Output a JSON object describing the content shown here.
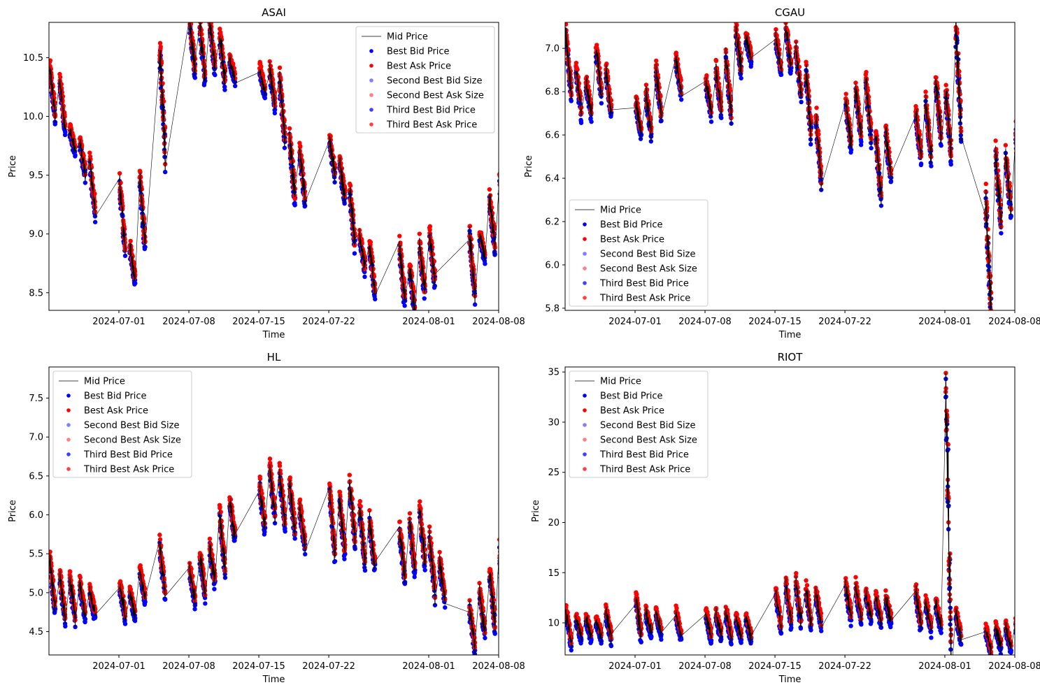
{
  "colors": {
    "bid": "#0000ff",
    "ask": "#ff0000",
    "mid": "#000000",
    "second_bid": "#8080ff",
    "second_ask": "#ff8080",
    "third_bid": "#4040ff",
    "third_ask": "#ff4040"
  },
  "chart_data": [
    {
      "type": "scatter",
      "title": "ASAI",
      "xlabel": "Time",
      "ylabel": "Price",
      "x_ticks": [
        "2024-07-01",
        "2024-07-08",
        "2024-07-15",
        "2024-07-22",
        "2024-08-01",
        "2024-08-08"
      ],
      "y_ticks": [
        "8.5",
        "9.0",
        "9.5",
        "10.0",
        "10.5"
      ],
      "xlim": [
        "2024-06-24",
        "2024-08-08"
      ],
      "ylim": [
        8.35,
        10.8
      ],
      "legend_position": "top-right",
      "legend": [
        "Mid Price",
        "Best Bid Price",
        "Best Ask Price",
        "Second Best Bid Size",
        "Second Best Ask Size",
        "Third Best Bid Price",
        "Third Best Ask Price"
      ],
      "sessions": [
        {
          "date": "2024-06-24",
          "mid": [
            10.4,
            10.0
          ]
        },
        {
          "date": "2024-06-25",
          "mid": [
            10.3,
            9.9
          ]
        },
        {
          "date": "2024-06-26",
          "mid": [
            9.9,
            9.7
          ]
        },
        {
          "date": "2024-06-27",
          "mid": [
            9.8,
            9.5
          ]
        },
        {
          "date": "2024-06-28",
          "mid": [
            9.6,
            9.2
          ]
        },
        {
          "date": "2024-07-01",
          "mid": [
            9.4,
            8.9
          ]
        },
        {
          "date": "2024-07-02",
          "mid": [
            8.9,
            8.6
          ]
        },
        {
          "date": "2024-07-03",
          "mid": [
            9.5,
            8.9
          ]
        },
        {
          "date": "2024-07-05",
          "mid": [
            10.6,
            9.7
          ]
        },
        {
          "date": "2024-07-08",
          "mid": [
            10.8,
            10.4
          ]
        },
        {
          "date": "2024-07-09",
          "mid": [
            10.8,
            10.3
          ]
        },
        {
          "date": "2024-07-10",
          "mid": [
            10.8,
            10.4
          ]
        },
        {
          "date": "2024-07-11",
          "mid": [
            10.7,
            10.3
          ]
        },
        {
          "date": "2024-07-12",
          "mid": [
            10.5,
            10.3
          ]
        },
        {
          "date": "2024-07-15",
          "mid": [
            10.4,
            10.2
          ]
        },
        {
          "date": "2024-07-16",
          "mid": [
            10.4,
            10.1
          ]
        },
        {
          "date": "2024-07-17",
          "mid": [
            10.3,
            9.8
          ]
        },
        {
          "date": "2024-07-18",
          "mid": [
            9.8,
            9.3
          ]
        },
        {
          "date": "2024-07-19",
          "mid": [
            9.7,
            9.3
          ]
        },
        {
          "date": "2024-07-22",
          "mid": [
            9.8,
            9.5
          ]
        },
        {
          "date": "2024-07-23",
          "mid": [
            9.6,
            9.3
          ]
        },
        {
          "date": "2024-07-24",
          "mid": [
            9.4,
            8.9
          ]
        },
        {
          "date": "2024-07-25",
          "mid": [
            9.0,
            8.7
          ]
        },
        {
          "date": "2024-07-26",
          "mid": [
            8.9,
            8.5
          ]
        },
        {
          "date": "2024-07-29",
          "mid": [
            8.9,
            8.4
          ]
        },
        {
          "date": "2024-07-30",
          "mid": [
            8.7,
            8.35
          ]
        },
        {
          "date": "2024-07-31",
          "mid": [
            8.9,
            8.5
          ]
        },
        {
          "date": "2024-08-01",
          "mid": [
            9.0,
            8.6
          ]
        },
        {
          "date": "2024-08-05",
          "mid": [
            9.0,
            8.5
          ]
        },
        {
          "date": "2024-08-06",
          "mid": [
            9.0,
            8.8
          ]
        },
        {
          "date": "2024-08-07",
          "mid": [
            9.3,
            8.9
          ]
        },
        {
          "date": "2024-08-08",
          "mid": [
            9.5,
            9.0
          ]
        }
      ]
    },
    {
      "type": "scatter",
      "title": "CGAU",
      "xlabel": "Time",
      "ylabel": "Price",
      "x_ticks": [
        "2024-07-01",
        "2024-07-08",
        "2024-07-15",
        "2024-07-22",
        "2024-08-01",
        "2024-08-08"
      ],
      "y_ticks": [
        "5.8",
        "6.0",
        "6.2",
        "6.4",
        "6.6",
        "6.8",
        "7.0"
      ],
      "xlim": [
        "2024-06-24",
        "2024-08-08"
      ],
      "ylim": [
        5.79,
        7.12
      ],
      "legend_position": "lower-left",
      "legend": [
        "Mid Price",
        "Best Bid Price",
        "Best Ask Price",
        "Second Best Bid Size",
        "Second Best Ask Size",
        "Third Best Bid Price",
        "Third Best Ask Price"
      ],
      "sessions": [
        {
          "date": "2024-06-24",
          "mid": [
            7.05,
            6.8
          ]
        },
        {
          "date": "2024-06-25",
          "mid": [
            6.9,
            6.7
          ]
        },
        {
          "date": "2024-06-26",
          "mid": [
            6.85,
            6.7
          ]
        },
        {
          "date": "2024-06-27",
          "mid": [
            7.0,
            6.8
          ]
        },
        {
          "date": "2024-06-28",
          "mid": [
            6.9,
            6.7
          ]
        },
        {
          "date": "2024-07-01",
          "mid": [
            6.75,
            6.6
          ]
        },
        {
          "date": "2024-07-02",
          "mid": [
            6.8,
            6.6
          ]
        },
        {
          "date": "2024-07-03",
          "mid": [
            6.9,
            6.7
          ]
        },
        {
          "date": "2024-07-05",
          "mid": [
            6.95,
            6.8
          ]
        },
        {
          "date": "2024-07-08",
          "mid": [
            6.85,
            6.7
          ]
        },
        {
          "date": "2024-07-09",
          "mid": [
            6.9,
            6.7
          ]
        },
        {
          "date": "2024-07-10",
          "mid": [
            6.95,
            6.7
          ]
        },
        {
          "date": "2024-07-11",
          "mid": [
            7.1,
            6.9
          ]
        },
        {
          "date": "2024-07-12",
          "mid": [
            7.05,
            6.95
          ]
        },
        {
          "date": "2024-07-15",
          "mid": [
            7.05,
            6.9
          ]
        },
        {
          "date": "2024-07-16",
          "mid": [
            7.1,
            6.9
          ]
        },
        {
          "date": "2024-07-17",
          "mid": [
            7.0,
            6.8
          ]
        },
        {
          "date": "2024-07-18",
          "mid": [
            6.9,
            6.6
          ]
        },
        {
          "date": "2024-07-19",
          "mid": [
            6.7,
            6.4
          ]
        },
        {
          "date": "2024-07-22",
          "mid": [
            6.75,
            6.55
          ]
        },
        {
          "date": "2024-07-23",
          "mid": [
            6.8,
            6.6
          ]
        },
        {
          "date": "2024-07-24",
          "mid": [
            6.85,
            6.6
          ]
        },
        {
          "date": "2024-07-25",
          "mid": [
            6.6,
            6.3
          ]
        },
        {
          "date": "2024-07-26",
          "mid": [
            6.6,
            6.4
          ]
        },
        {
          "date": "2024-07-29",
          "mid": [
            6.7,
            6.5
          ]
        },
        {
          "date": "2024-07-30",
          "mid": [
            6.75,
            6.5
          ]
        },
        {
          "date": "2024-07-31",
          "mid": [
            6.85,
            6.6
          ]
        },
        {
          "date": "2024-08-01",
          "mid": [
            6.8,
            6.5
          ]
        },
        {
          "date": "2024-08-02",
          "mid": [
            7.1,
            6.65
          ]
        },
        {
          "date": "2024-08-05",
          "mid": [
            6.3,
            5.8
          ]
        },
        {
          "date": "2024-08-06",
          "mid": [
            6.5,
            6.2
          ]
        },
        {
          "date": "2024-08-07",
          "mid": [
            6.5,
            6.25
          ]
        },
        {
          "date": "2024-08-08",
          "mid": [
            6.6,
            6.2
          ]
        }
      ]
    },
    {
      "type": "scatter",
      "title": "HL",
      "xlabel": "Time",
      "ylabel": "Price",
      "x_ticks": [
        "2024-07-01",
        "2024-07-08",
        "2024-07-15",
        "2024-07-22",
        "2024-08-01",
        "2024-08-08"
      ],
      "y_ticks": [
        "4.5",
        "5.0",
        "5.5",
        "6.0",
        "6.5",
        "7.0",
        "7.5"
      ],
      "xlim": [
        "2024-06-24",
        "2024-08-08"
      ],
      "ylim": [
        4.2,
        7.9
      ],
      "legend_position": "top-left",
      "legend": [
        "Mid Price",
        "Best Bid Price",
        "Best Ask Price",
        "Second Best Bid Size",
        "Second Best Ask Size",
        "Third Best Bid Price",
        "Third Best Ask Price"
      ],
      "sessions": [
        {
          "date": "2024-06-24",
          "mid": [
            5.4,
            4.8
          ]
        },
        {
          "date": "2024-06-25",
          "mid": [
            5.2,
            4.7
          ]
        },
        {
          "date": "2024-06-26",
          "mid": [
            5.2,
            4.7
          ]
        },
        {
          "date": "2024-06-27",
          "mid": [
            5.1,
            4.7
          ]
        },
        {
          "date": "2024-06-28",
          "mid": [
            5.0,
            4.7
          ]
        },
        {
          "date": "2024-07-01",
          "mid": [
            5.1,
            4.7
          ]
        },
        {
          "date": "2024-07-02",
          "mid": [
            5.0,
            4.7
          ]
        },
        {
          "date": "2024-07-03",
          "mid": [
            5.3,
            4.9
          ]
        },
        {
          "date": "2024-07-05",
          "mid": [
            5.6,
            5.0
          ]
        },
        {
          "date": "2024-07-08",
          "mid": [
            5.3,
            4.9
          ]
        },
        {
          "date": "2024-07-09",
          "mid": [
            5.5,
            5.0
          ]
        },
        {
          "date": "2024-07-10",
          "mid": [
            5.6,
            5.1
          ]
        },
        {
          "date": "2024-07-11",
          "mid": [
            6.0,
            5.3
          ]
        },
        {
          "date": "2024-07-12",
          "mid": [
            6.2,
            5.7
          ]
        },
        {
          "date": "2024-07-15",
          "mid": [
            6.4,
            5.8
          ]
        },
        {
          "date": "2024-07-16",
          "mid": [
            6.6,
            6.0
          ]
        },
        {
          "date": "2024-07-17",
          "mid": [
            6.5,
            5.9
          ]
        },
        {
          "date": "2024-07-18",
          "mid": [
            6.4,
            5.8
          ]
        },
        {
          "date": "2024-07-19",
          "mid": [
            6.1,
            5.6
          ]
        },
        {
          "date": "2024-07-22",
          "mid": [
            6.3,
            5.5
          ]
        },
        {
          "date": "2024-07-23",
          "mid": [
            6.2,
            5.5
          ]
        },
        {
          "date": "2024-07-24",
          "mid": [
            6.4,
            5.7
          ]
        },
        {
          "date": "2024-07-25",
          "mid": [
            6.1,
            5.4
          ]
        },
        {
          "date": "2024-07-26",
          "mid": [
            5.9,
            5.3
          ]
        },
        {
          "date": "2024-07-29",
          "mid": [
            5.8,
            5.2
          ]
        },
        {
          "date": "2024-07-30",
          "mid": [
            5.9,
            5.3
          ]
        },
        {
          "date": "2024-07-31",
          "mid": [
            6.1,
            5.4
          ]
        },
        {
          "date": "2024-08-01",
          "mid": [
            5.7,
            5.0
          ]
        },
        {
          "date": "2024-08-02",
          "mid": [
            5.4,
            4.9
          ]
        },
        {
          "date": "2024-08-05",
          "mid": [
            4.8,
            4.3
          ]
        },
        {
          "date": "2024-08-06",
          "mid": [
            5.0,
            4.5
          ]
        },
        {
          "date": "2024-08-07",
          "mid": [
            5.3,
            4.6
          ]
        },
        {
          "date": "2024-08-08",
          "mid": [
            5.5,
            4.7
          ]
        }
      ]
    },
    {
      "type": "scatter",
      "title": "RIOT",
      "xlabel": "Time",
      "ylabel": "Price",
      "x_ticks": [
        "2024-07-01",
        "2024-07-08",
        "2024-07-15",
        "2024-07-22",
        "2024-08-01",
        "2024-08-08"
      ],
      "y_ticks": [
        "10",
        "15",
        "20",
        "25",
        "30",
        "35"
      ],
      "xlim": [
        "2024-06-24",
        "2024-08-08"
      ],
      "ylim": [
        6.8,
        35.5
      ],
      "legend_position": "top-left",
      "legend": [
        "Mid Price",
        "Best Bid Price",
        "Best Ask Price",
        "Second Best Bid Size",
        "Second Best Ask Size",
        "Third Best Bid Price",
        "Third Best Ask Price"
      ],
      "sessions": [
        {
          "date": "2024-06-24",
          "mid": [
            11.0,
            8.0
          ]
        },
        {
          "date": "2024-06-25",
          "mid": [
            10.5,
            8.5
          ]
        },
        {
          "date": "2024-06-26",
          "mid": [
            10.5,
            8.5
          ]
        },
        {
          "date": "2024-06-27",
          "mid": [
            10.5,
            8.5
          ]
        },
        {
          "date": "2024-06-28",
          "mid": [
            11.0,
            8.5
          ]
        },
        {
          "date": "2024-07-01",
          "mid": [
            12.5,
            8.5
          ]
        },
        {
          "date": "2024-07-02",
          "mid": [
            11.0,
            9.0
          ]
        },
        {
          "date": "2024-07-03",
          "mid": [
            11.0,
            9.0
          ]
        },
        {
          "date": "2024-07-05",
          "mid": [
            11.0,
            8.5
          ]
        },
        {
          "date": "2024-07-08",
          "mid": [
            11.0,
            8.5
          ]
        },
        {
          "date": "2024-07-09",
          "mid": [
            11.0,
            8.5
          ]
        },
        {
          "date": "2024-07-10",
          "mid": [
            11.0,
            8.5
          ]
        },
        {
          "date": "2024-07-11",
          "mid": [
            10.5,
            8.5
          ]
        },
        {
          "date": "2024-07-12",
          "mid": [
            10.5,
            8.5
          ]
        },
        {
          "date": "2024-07-15",
          "mid": [
            13.0,
            9.5
          ]
        },
        {
          "date": "2024-07-16",
          "mid": [
            14.0,
            10.0
          ]
        },
        {
          "date": "2024-07-17",
          "mid": [
            14.0,
            10.0
          ]
        },
        {
          "date": "2024-07-18",
          "mid": [
            13.5,
            10.0
          ]
        },
        {
          "date": "2024-07-19",
          "mid": [
            13.0,
            10.0
          ]
        },
        {
          "date": "2024-07-22",
          "mid": [
            13.5,
            10.5
          ]
        },
        {
          "date": "2024-07-23",
          "mid": [
            13.5,
            10.5
          ]
        },
        {
          "date": "2024-07-24",
          "mid": [
            13.0,
            10.5
          ]
        },
        {
          "date": "2024-07-25",
          "mid": [
            12.5,
            10.0
          ]
        },
        {
          "date": "2024-07-26",
          "mid": [
            12.5,
            10.0
          ]
        },
        {
          "date": "2024-07-29",
          "mid": [
            13.0,
            9.5
          ]
        },
        {
          "date": "2024-07-30",
          "mid": [
            12.0,
            9.5
          ]
        },
        {
          "date": "2024-07-31",
          "mid": [
            12.0,
            9.5
          ]
        },
        {
          "date": "2024-08-01",
          "mid": [
            35.5,
            9.0
          ]
        },
        {
          "date": "2024-08-02",
          "mid": [
            11.0,
            8.5
          ]
        },
        {
          "date": "2024-08-05",
          "mid": [
            9.5,
            7.0
          ]
        },
        {
          "date": "2024-08-06",
          "mid": [
            9.5,
            7.5
          ]
        },
        {
          "date": "2024-08-07",
          "mid": [
            9.5,
            7.5
          ]
        },
        {
          "date": "2024-08-08",
          "mid": [
            10.0,
            7.5
          ]
        }
      ]
    }
  ]
}
